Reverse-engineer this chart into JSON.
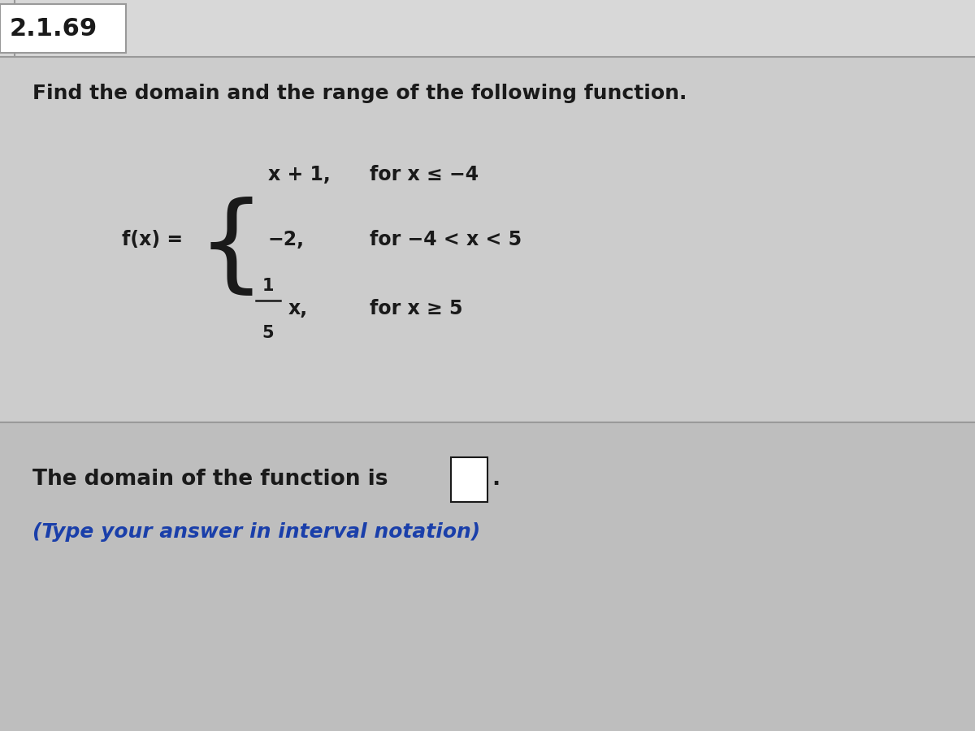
{
  "problem_number": "2.1.69",
  "instruction": "Find the domain and the range of the following function.",
  "fx_label": "f(x) =",
  "piece1_expr": "x + 1,",
  "piece1_cond": "for x ≤ −4",
  "piece2_expr": "−2,",
  "piece2_cond": "for −4 < x < 5",
  "piece3_expr_num": "1",
  "piece3_expr_den": "5",
  "piece3_expr_var": "x,",
  "piece3_cond": "for x ≥ 5",
  "answer_line1": "The domain of the function is",
  "answer_line2": "(Type your answer in interval notation)",
  "bg_top": "#d8d8d8",
  "bg_middle": "#c8c8c8",
  "bg_bottom": "#c0c0c0",
  "text_color_black": "#1a1a1a",
  "text_color_blue": "#1a3faa",
  "header_bg": "#e8e8e8",
  "divider_color": "#999999"
}
